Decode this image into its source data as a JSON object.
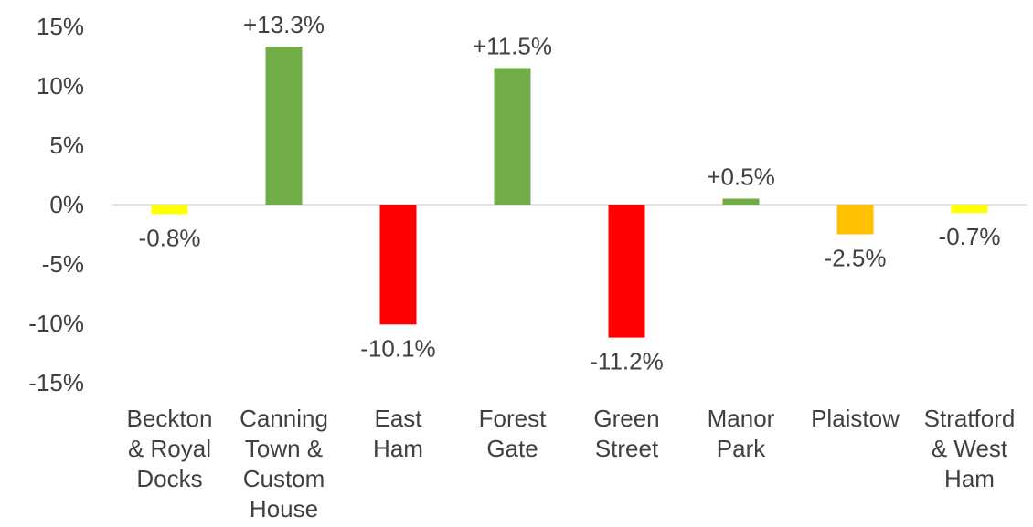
{
  "chart_data": {
    "type": "bar",
    "categories": [
      [
        "Beckton",
        "& Royal",
        "Docks"
      ],
      [
        "Canning",
        "Town &",
        "Custom",
        "House"
      ],
      [
        "East",
        "Ham"
      ],
      [
        "Forest",
        "Gate"
      ],
      [
        "Green",
        "Street"
      ],
      [
        "Manor",
        "Park"
      ],
      [
        "Plaistow"
      ],
      [
        "Stratford",
        "& West",
        "Ham"
      ]
    ],
    "values": [
      -0.8,
      13.3,
      -10.1,
      11.5,
      -11.2,
      0.5,
      -2.5,
      -0.7
    ],
    "data_labels": [
      "-0.8%",
      "+13.3%",
      "-10.1%",
      "+11.5%",
      "-11.2%",
      "+0.5%",
      "-2.5%",
      "-0.7%"
    ],
    "colors": [
      "#FFFF00",
      "#70AD47",
      "#FF0000",
      "#70AD47",
      "#FF0000",
      "#70AD47",
      "#FFC000",
      "#FFFF00"
    ],
    "yticks": [
      15,
      10,
      5,
      0,
      -5,
      -10,
      -15
    ],
    "ytick_labels": [
      "15%",
      "10%",
      "5%",
      "0%",
      "-5%",
      "-10%",
      "-15%"
    ],
    "ylim": [
      -15,
      15
    ],
    "title": "",
    "xlabel": "",
    "ylabel": "",
    "grid": false,
    "legend": "none",
    "axis_color": "#D9D9D9",
    "text_color": "#404040"
  }
}
